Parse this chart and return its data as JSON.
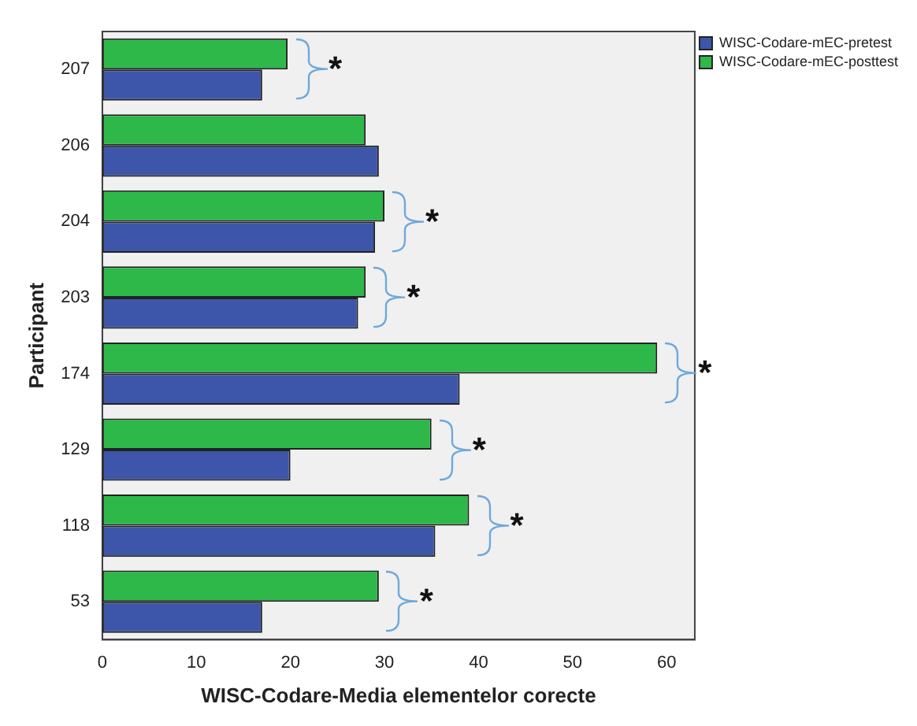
{
  "chart_data": {
    "type": "bar",
    "orientation": "horizontal",
    "xlabel": "WISC-Codare-Media elementelor corecte",
    "ylabel": "Participant",
    "categories": [
      "207",
      "206",
      "204",
      "203",
      "174",
      "129",
      "118",
      "53"
    ],
    "series": [
      {
        "name": "WISC-Codare-mEC-pretest",
        "color": "#3d56a9",
        "values": [
          17,
          29.4,
          29,
          27.2,
          38,
          20,
          35.4,
          17
        ]
      },
      {
        "name": "WISC-Codare-mEC-posttest",
        "color": "#2eb84a",
        "values": [
          19.7,
          28,
          30,
          28,
          59,
          35,
          39,
          29.4
        ]
      }
    ],
    "xlim": [
      0,
      63
    ],
    "xticks": [
      0,
      10,
      20,
      30,
      40,
      50,
      60
    ],
    "grid": false,
    "legend": "top right",
    "annotations": [
      {
        "text": "*",
        "x": 19.7,
        "y": "207"
      },
      {
        "text": "*",
        "x": 30,
        "y": "204"
      },
      {
        "text": "*",
        "x": 28,
        "y": "203"
      },
      {
        "text": "*",
        "x": 59,
        "y": "174"
      },
      {
        "text": "*",
        "x": 35,
        "y": "129"
      },
      {
        "text": "*",
        "x": 39,
        "y": "118"
      },
      {
        "text": "*",
        "x": 29.4,
        "y": "53"
      }
    ]
  }
}
